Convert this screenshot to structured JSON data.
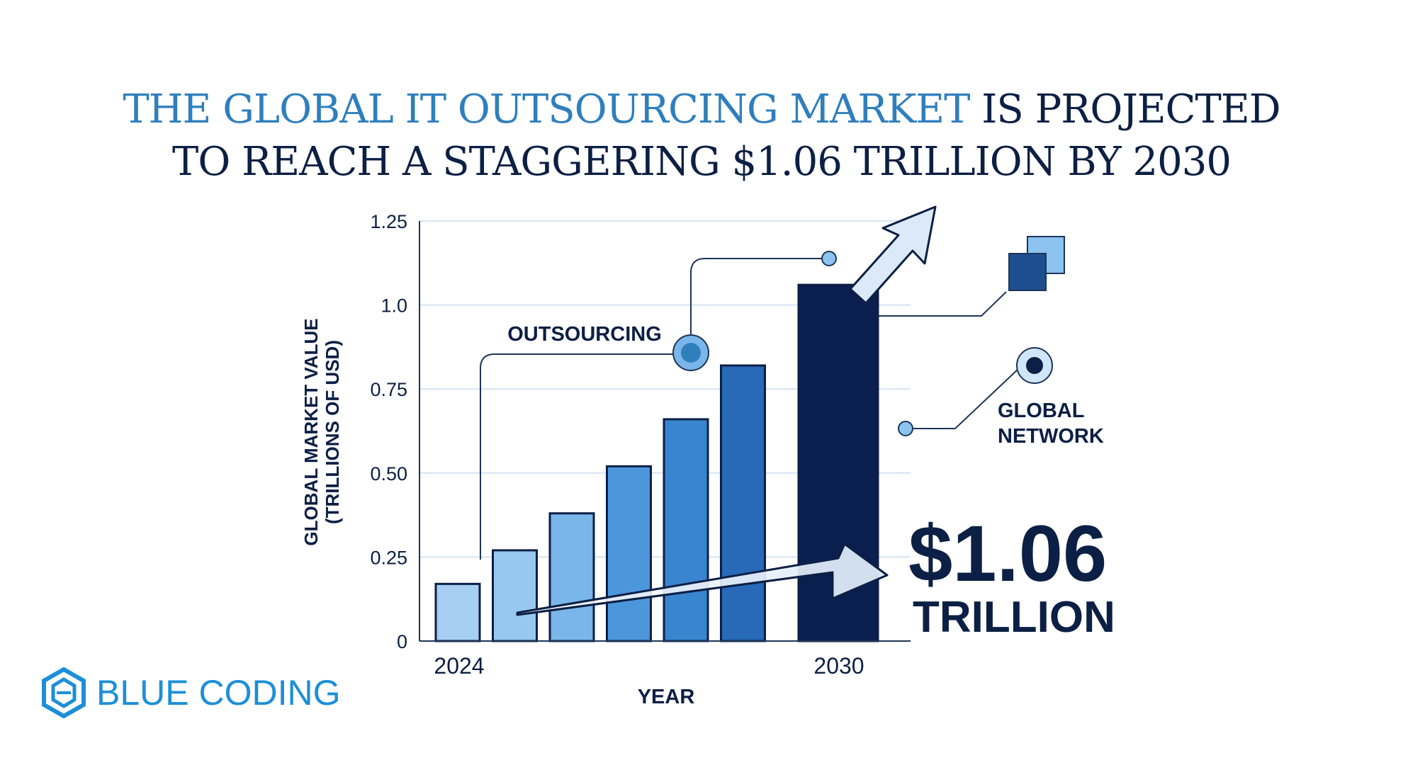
{
  "headline": {
    "accent": "THE GLOBAL IT OUTSOURCING MARKET",
    "rest_line1": " IS PROJECTED",
    "line2": "TO REACH A STAGGERING $1.06 TRILLION BY 2030"
  },
  "brand": {
    "name": "BLUE CODING",
    "icon": "hexagon-logo-icon"
  },
  "callouts": {
    "outsourcing": "OUTSOURCING",
    "global_network_line1": "GLOBAL",
    "global_network_line2": "NETWORK",
    "big_value": "$1.06",
    "big_unit": "TRILLION"
  },
  "colors": {
    "navy": "#0c1f44",
    "accent_blue": "#2f7fbd",
    "brand_blue": "#1c8fd8",
    "bar_light": "#a6cff2",
    "bar_dark": "#0b1f4f"
  },
  "chart_data": {
    "type": "bar",
    "categories": [
      "2024",
      "",
      "",
      "",
      "",
      "",
      "2030"
    ],
    "values": [
      0.17,
      0.27,
      0.38,
      0.52,
      0.66,
      0.82,
      1.06
    ],
    "bar_colors": [
      "#a6cff2",
      "#98c8f0",
      "#7ab6ea",
      "#4c97dc",
      "#3a85d0",
      "#2869b8",
      "#0b1f4f"
    ],
    "title": "",
    "xlabel": "YEAR",
    "ylabel_line1": "GLOBAL MARKET VALUE",
    "ylabel_line2": "(TRILLIONS OF USD)",
    "ylim": [
      0,
      1.25
    ],
    "yticks": [
      "0",
      "0.25",
      "0.50",
      "0.75",
      "1.0",
      "1.25"
    ],
    "ytick_values": [
      0,
      0.25,
      0.5,
      0.75,
      1.0,
      1.25
    ],
    "grid": true,
    "legend": "none"
  }
}
